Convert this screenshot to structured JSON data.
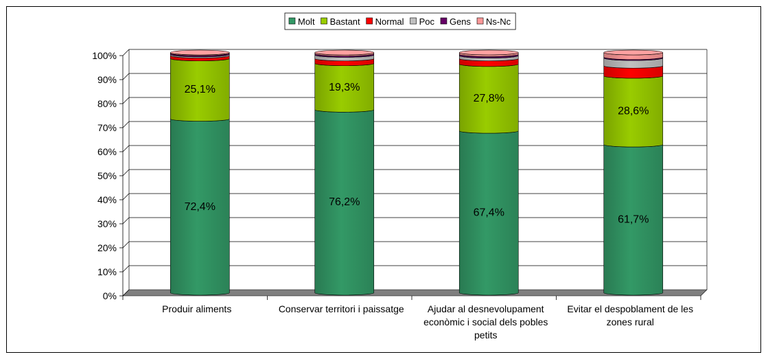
{
  "chart_data": {
    "type": "bar",
    "stacked": true,
    "percent": true,
    "categories": [
      [
        "Produir aliments"
      ],
      [
        "Conservar territori i paissatge"
      ],
      [
        "Ajudar al desnevolupament",
        "econòmic i social dels pobles",
        "petits"
      ],
      [
        "Evitar el despoblament de les",
        "zones rural"
      ]
    ],
    "series": [
      {
        "name": "Molt",
        "color": "#339966",
        "values": [
          72.4,
          76.2,
          67.4,
          61.7
        ],
        "labels": [
          "72,4%",
          "76,2%",
          "67,4%",
          "61,7%"
        ]
      },
      {
        "name": "Bastant",
        "color": "#99CC00",
        "values": [
          25.1,
          19.3,
          27.8,
          28.6
        ],
        "labels": [
          "25,1%",
          "19,3%",
          "27,8%",
          "28,6%"
        ]
      },
      {
        "name": "Normal",
        "color": "#FF0000",
        "values": [
          1.2,
          2.0,
          2.3,
          4.2
        ],
        "labels": [
          "",
          "",
          "",
          ""
        ]
      },
      {
        "name": "Poc",
        "color": "#C0C0C0",
        "values": [
          0.5,
          1.5,
          1.2,
          3.2
        ],
        "labels": [
          "",
          "",
          "",
          ""
        ]
      },
      {
        "name": "Gens",
        "color": "#660066",
        "values": [
          0.5,
          0.5,
          0.6,
          0.4
        ],
        "labels": [
          "",
          "",
          "",
          ""
        ]
      },
      {
        "name": "Ns-Nc",
        "color": "#FF9999",
        "values": [
          0.3,
          0.5,
          0.7,
          1.9
        ],
        "labels": [
          "",
          "",
          "",
          ""
        ]
      }
    ],
    "y_ticks": [
      "0%",
      "10%",
      "20%",
      "30%",
      "40%",
      "50%",
      "60%",
      "70%",
      "80%",
      "90%",
      "100%"
    ],
    "ylim": [
      0,
      100
    ],
    "grid": true,
    "legend_position": "top-center",
    "floor_color": "#808080"
  }
}
